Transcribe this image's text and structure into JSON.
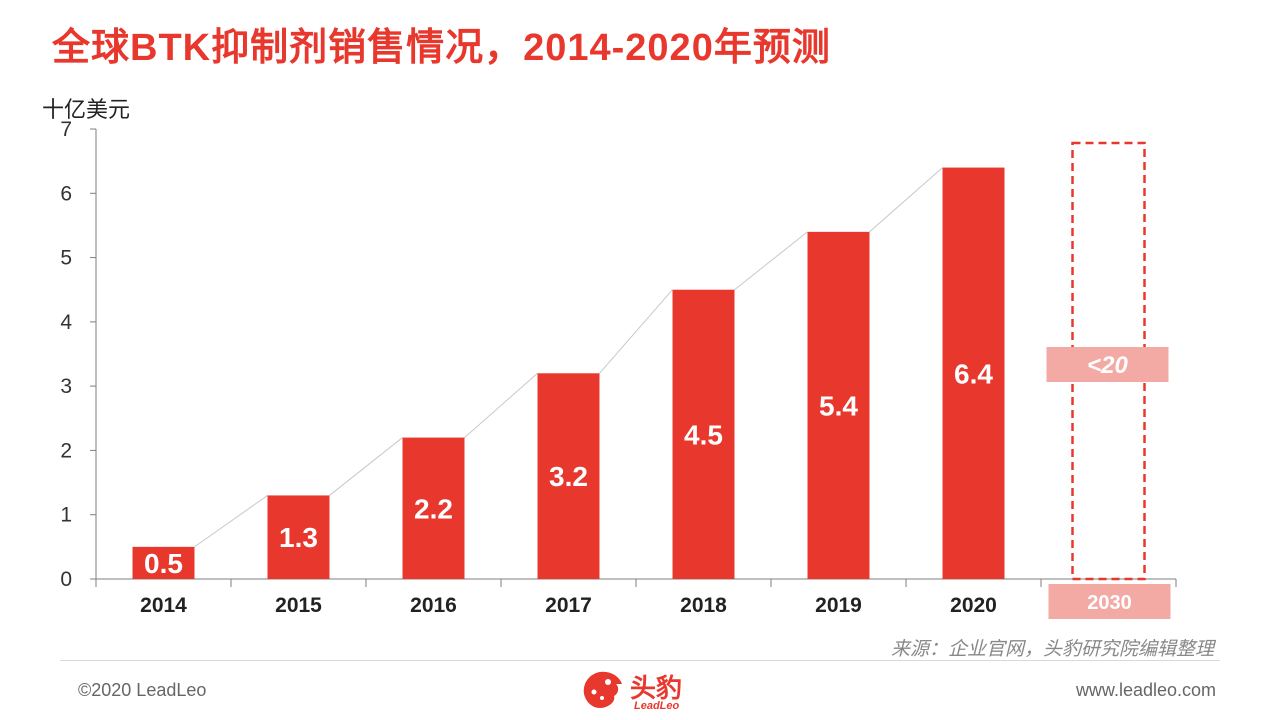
{
  "title": "全球BTK抑制剂销售情况，2014-2020年预测",
  "unit_label": "十亿美元",
  "chart_data": {
    "type": "bar",
    "categories": [
      "2014",
      "2015",
      "2016",
      "2017",
      "2018",
      "2019",
      "2020"
    ],
    "values": [
      0.5,
      1.3,
      2.2,
      3.2,
      4.5,
      5.4,
      6.4
    ],
    "data_labels": [
      "0.5",
      "1.3",
      "2.2",
      "3.2",
      "4.5",
      "5.4",
      "6.4"
    ],
    "ylim": [
      0,
      7
    ],
    "yticks": [
      0,
      1,
      2,
      3,
      4,
      5,
      6,
      7
    ],
    "trend_line": true,
    "grid": false,
    "forecast": {
      "category": "2030",
      "label": "<20"
    },
    "colors": {
      "bar": "#e8382e",
      "forecast_box": "#f4aaa4",
      "trend": "#c8c8c8"
    }
  },
  "source": "来源：企业官网，头豹研究院编辑整理",
  "footer": {
    "copyright": "©2020 LeadLeo",
    "website": "www.leadleo.com",
    "logo_text": "头豹",
    "logo_sub": "LeadLeo"
  }
}
